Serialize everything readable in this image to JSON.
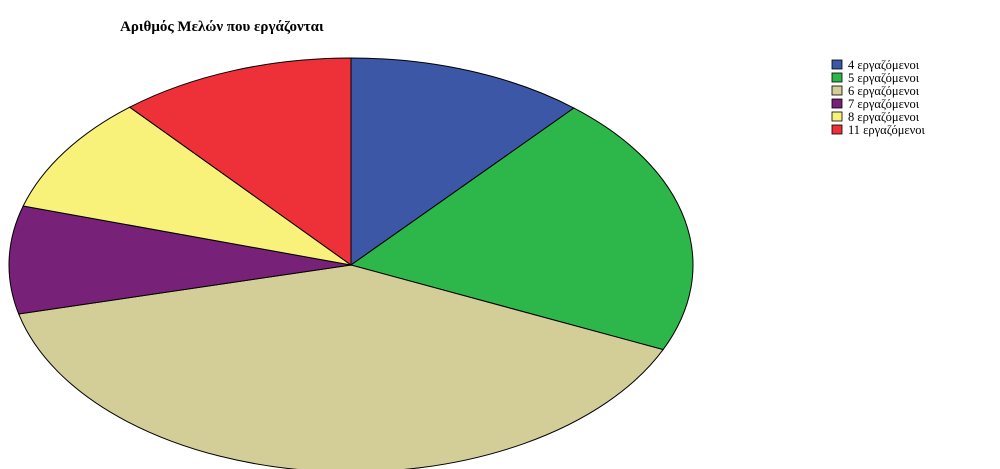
{
  "chart_data": {
    "type": "pie",
    "title": "Αριθμός Μελών που εργάζονται",
    "legend_position": "top-right",
    "slices": [
      {
        "label": "4 εργαζόμενοι",
        "value": 11.3,
        "color": "#3b57a6"
      },
      {
        "label": "5 εργαζόμενοι",
        "value": 20.4,
        "color": "#2db74a"
      },
      {
        "label": "6 εργαζόμενοι",
        "value": 39.5,
        "color": "#d3cd98"
      },
      {
        "label": "7 εργαζόμενοι",
        "value": 8.4,
        "color": "#772178"
      },
      {
        "label": "8 εργαζόμενοι",
        "value": 9.2,
        "color": "#f8f27a"
      },
      {
        "label": "11 εργαζόμενοι",
        "value": 11.2,
        "color": "#ee3038"
      }
    ]
  }
}
